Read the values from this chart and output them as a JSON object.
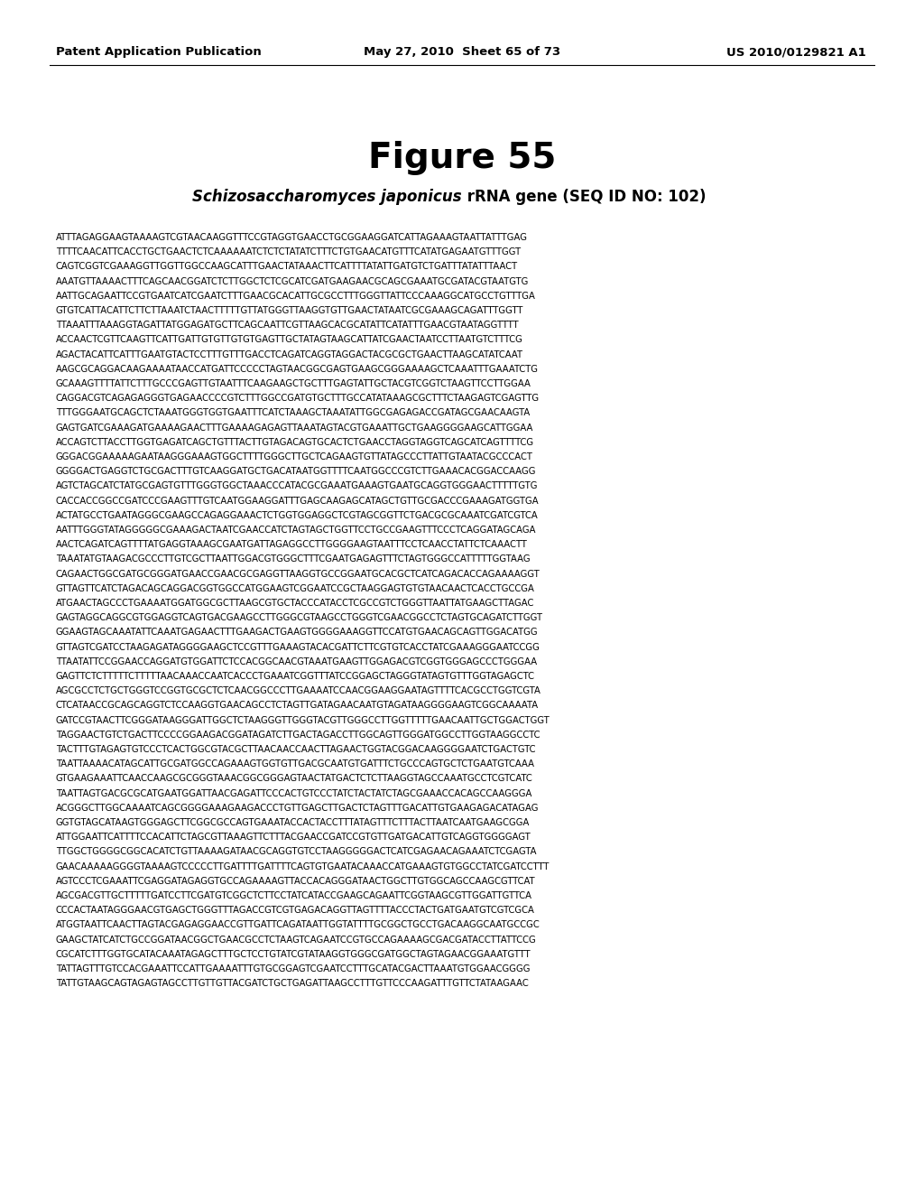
{
  "header_left": "Patent Application Publication",
  "header_middle": "May 27, 2010  Sheet 65 of 73",
  "header_right": "US 2010/0129821 A1",
  "figure_title": "Figure 55",
  "subtitle_italic": "Schizosaccharomyces japonicus",
  "subtitle_normal": " rRNA gene (SEQ ID NO: 102)",
  "sequence_lines": [
    "ATTTAGAGGAAGTAAAAGTCGTAACAAGGTTTCCGTAGGTGAACCTGCGGAAGGATCATTAGAAAGTAATTATTTGAG",
    "TTTTCAACATTCACCTGCTGAACTCTCAAAAAATCTCTCTATATCTTTCTGTGAACATGTTTCATATGAGAATGTTTGGT",
    "CAGTCGGTCGAAAGGTTGGTTGGCCAAGCATTTGAACTATAAACTTCATTTTATATTGATGTCTGATTTATATTTAACT",
    "AAATGTTAAAACTTTCAGCAACGGATCTCTTGGCTCTCGCATCGATGAAGAACGCAGCGAAATGCGATACGTAATGTG",
    "AATTGCAGAATTCCGTGAATCATCGAATCTTTGAACGCACATTGCGCCTTTGGGTTATTCCCAAAGGCATGCCTGTTTGA",
    "GTGTCATTACATTCTTCTTAAATCTAACTTTTTGTTATGGGTTAAGGTGTTGAACTATAATCGCGAAAGCAGATTTGGTT",
    "TTAAATTTAAAGGTAGATTATGGAGATGCTTCAGCAATTCGTTAAGCACGCATATTCATATTTGAACGTAATAGGTTTT",
    "ACCAACTCGTTCAAGTTCATTGATTGTGTTGTGTGAGTTGCTATAGTAAGCATTATCGAACTAATCCTTAATGTCTTTCG",
    "AGACTACATTCATTTGAATGTACTCCTTTGTTTGACCTCAGATCAGGTAGGACTACGCGCTGAACTTAAGCATATCAAT",
    "AAGCGCAGGACAAGAAAATAACCATGATTCCCCCTAGTAACGGCGAGTGAAGCGGGAAAAGCTCAAATTTGAAATCTG",
    "GCAAAGTTTTATTCTTTGCCCGAGTTGTAATTTCAAGAAGCTGCTTTGAGTATTGCTACGTCGGTCTAAGTTCCTTGGAA",
    "CAGGACGTCAGAGAGGGTGAGAACCCCGTCTTTGGCCGATGTGCTTTGCCATATAAAGCGCTTTCTAAGAGTCGAGTTG",
    "TTTGGGAATGCAGCTCTAAATGGGTGGTGAATTTCATCTAAAGCTAAATATTGGCGAGAGACCGATAGCGAACAAGTA",
    "GAGTGATCGAAAGATGAAAAGAACTTTGAAAAGAGAGTTAAATAGTACGTGAAATTGCTGAAGGGGAAGCATTGGAA",
    "ACCAGTCTTACCTTGGTGAGATCAGCTGTTTACTTGTAGACAGTGCACTCTGAACCTAGGTAGGTCAGCATCAGTTTTCG",
    "GGGACGGAAAAAGAATAAGGGAAAGTGGCTTTTGGGCTTGCTCAGAAGTGTTATAGCCCTTATTGTAATACGCCCACT",
    "GGGGACTGAGGTCTGCGACTTTGTCAAGGATGCTGACATAATGGTTTTCAATGGCCCGTCTTGAAACACGGACCAAGG",
    "AGTCTAGCATCTATGCGAGTGTTTGGGTGGCTAAACCCATACGCGAAATGAAAGTGAATGCAGGTGGGAACTTTTTGTG",
    "CACCACCGGCCGATCCCGAAGTTTGTCAATGGAAGGATTTGAGCAAGAGCATAGCTGTTGCGACCCGAAAGATGGTGA",
    "ACTATGCCTGAATAGGGCGAAGCCAGAGGAAACTCTGGTGGAGGCTCGTAGCGGTTCTGACGCGCAAATCGATCGTCA",
    "AATTTGGGTATAGGGGGCGAAAGACTAATCGAACCATCTAGTAGCTGGTTCCTGCCGAAGTTTCCCTCAGGATAGCAGA",
    "AACTCAGATCAGTTTTATGAGGTAAAGCGAATGATTAGAGGCCTTGGGGAAGTAATTTCCTCAACCTATTCTCAAACTT",
    "TAAATATGTAAGACGCCCTTGTCGCTTAATTGGACGTGGGCTTTCGAATGAGAGTTTCTAGTGGGCCATTTTTGGTAAG",
    "CAGAACTGGCGATGCGGGATGAACCGAACGCGAGGTTAAGGTGCCGGAATGCACGCTCATCAGACACCAGAAAAGGT",
    "GTTAGTTCATCTAGACAGCAGGACGGTGGCCATGGAAGTCGGAATCCGCTAAGGAGTGTGTAACAACTCACCTGCCGA",
    "ATGAACTAGCCCTGAAAATGGATGGCGCTTAAGCGTGCTACCCATACCTCGCCGTCTGGGTTAATTATGAAGCTTAGAC",
    "GAGTAGGCAGGCGTGGAGGTCAGTGACGAAGCCTTGGGCGTAAGCCTGGGTCGAACGGCCTCTAGTGCAGATCTTGGT",
    "GGAAGTAGCAAATATTCAAATGAGAACTTTGAAGACTGAAGTGGGGAAAGGTTCCATGTGAACAGCAGTTGGACATGG",
    "GTTAGTCGATCCTAAGAGATAGGGGAAGCTCCGTTTGAAAGTACACGATTCTTCGTGTCACCTATCGAAAGGGAATCCGG",
    "TTAATATTCCGGAACCAGGATGTGGATTCTCCACGGCAACGTAAATGAAGTTGGAGACGTCGGTGGGAGCCCTGGGAA",
    "GAGTTCTCTTTTTCTTTTTAACAAACCAATCACCCTGAAATCGGTTTATCCGGAGCTAGGGTATAGTGTTTGGTAGAGCTC",
    "AGCGCCTCTGCTGGGTCCGGTGCGCTCTCAACGGCCCTTGAAAATCCAACGGAAGGAATAGTTTTCACGCCTGGTCGTA",
    "CTCATAACCGCAGCAGGTCTCCAAGGTGAACAGCCTCTAGTTGATAGAACAATGTAGATAAGGGGAAGTCGGCAAAATA",
    "GATCCGTAACTTCGGGATAAGGGATTGGCTCTAAGGGTTGGGTACGTTGGGCCTTGGTTTTTGAACAATTGCTGGACTGGT",
    "TAGGAACTGTCTGACTTCCCCGGAAGACGGATAGATCTTGACTAGACCTTGGCAGTTGGGATGGCCTTGGTAAGGCCTC",
    "TACTTTGTAGAGTGTCCCTCACTGGCGTACGCTTAACAACCAACTTAGAACTGGTACGGACAAGGGGAATCTGACTGTC",
    "TAATTAAAACATAGCATTGCGATGGCCAGAAAGTGGTGTTGACGCAATGTGATTTCTGCCCAGTGCTCTGAATGTCAAA",
    "GTGAAGAAATTCAACCAAGCGCGGGTAAACGGCGGGAGTAACTATGACTCTCTTAAGGTAGCCAAATGCCTCGTCATC",
    "TAATTAGTGACGCGCATGAATGGATTAACGAGATTCCCACTGTCCCTATCTACTATCTAGCGAAACCACAGCCAAGGGA",
    "ACGGGCTTGGCAAAATCAGCGGGGAAAGAAGACCCTGTTGAGCTTGACTCTAGTTTGACATTGTGAAGAGACATAGAG",
    "GGTGTAGCATAAGTGGGAGCTTCGGCGCCAGTGAAATACCACTACCTTTATAGTTTCTTTACTTAATCAATGAAGCGGA",
    "ATTGGAATTCATTTTCCACATTCTAGCGTTAAAGTTCTTTACGAACCGATCCGTGTTGATGACATTGTCAGGTGGGGAGT",
    "TTGGCTGGGGCGGCACATCTGTTAAAAGATAACGCAGGTGTCCTAAGGGGGACTCATCGAGAACAGAAATCTCGAGTA",
    "GAACAAAAAGGGGTAAAAGTCCCCCTTGATTTTGATTTTCAGTGTGAATACAAACCATGAAAGTGTGGCCTATCGATCCTTT",
    "AGTCCCTCGAAATTCGAGGATAGAGGTGCCAGAAAAGTTACCACAGGGATAACTGGCTTGTGGCAGCCAAGCGTTCAT",
    "AGCGACGTTGCTTTTTGATCCTTCGATGTCGGCTCTTCCTATCATACCGAAGCAGAATTCGGTAAGCGTTGGATTGTTCA",
    "CCCACTAATAGGGAACGTGAGCTGGGTTTAGACCGTCGTGAGACAGGTTAGTTTTACCCTACTGATGAATGTCGTCGCA",
    "ATGGTAATTCAACTTAGTACGAGAGGAACCGTTGATTCAGATAATTGGTATTTTGCGGCTGCCTGACAAGGCAATGCCGC",
    "GAAGCTATCATCTGCCGGATAACGGCTGAACGCCTCTAAGTCAGAATCCGTGCCAGAAAAGCGACGATACCTTATTCCG",
    "CGCATCTTTGGTGCATACAAATAGAGCTTTGCTCCTGTATCGTATAAGGTGGGCGATGGCTAGTAGAACGGAAATGTTT",
    "TATTAGTTTGTCCACGAAATTCCATTGAAAATTTGTGCGGAGTCGAATCCTTTGCATACGACTTAAATGTGGAACGGGG",
    "TATTGTAAGCAGTAGAGTAGCCTTGTTGTTACGATCTGCTGAGATTAAGCCTTTGTTCCCAAGATTTGTTCTATAAGAAC"
  ],
  "bg_color": "#ffffff",
  "text_color": "#000000",
  "header_fontsize": 9.5,
  "figure_title_fontsize": 28,
  "subtitle_fontsize": 12,
  "sequence_fontsize": 7.2
}
